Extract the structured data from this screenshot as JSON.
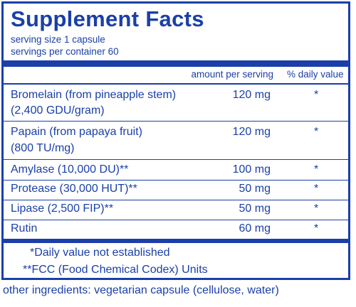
{
  "panel": {
    "title": "Supplement Facts",
    "serving_size": "serving size  1 capsule",
    "servings_per_container": "servings per container  60",
    "column_headers": {
      "amount": "amount per serving",
      "daily_value": "% daily value"
    },
    "rows": [
      {
        "name": "Bromelain (from pineapple stem)",
        "detail": "(2,400 GDU/gram)",
        "amount": "120 mg",
        "dv": "*"
      },
      {
        "name": "Papain (from papaya fruit)",
        "detail": "(800 TU/mg)",
        "amount": "120 mg",
        "dv": "*"
      },
      {
        "name": "Amylase (10,000 DU)**",
        "amount": "100 mg",
        "dv": "*"
      },
      {
        "name": "Protease (30,000 HUT)**",
        "amount": "50 mg",
        "dv": "*"
      },
      {
        "name": "Lipase (2,500 FIP)**",
        "amount": "50 mg",
        "dv": "*"
      },
      {
        "name": "Rutin",
        "amount": "60 mg",
        "dv": "*"
      }
    ],
    "footnotes": [
      "*Daily value not established",
      "**FCC (Food Chemical Codex) Units"
    ]
  },
  "other_ingredients": "other ingredients: vegetarian capsule (cellulose, water)"
}
